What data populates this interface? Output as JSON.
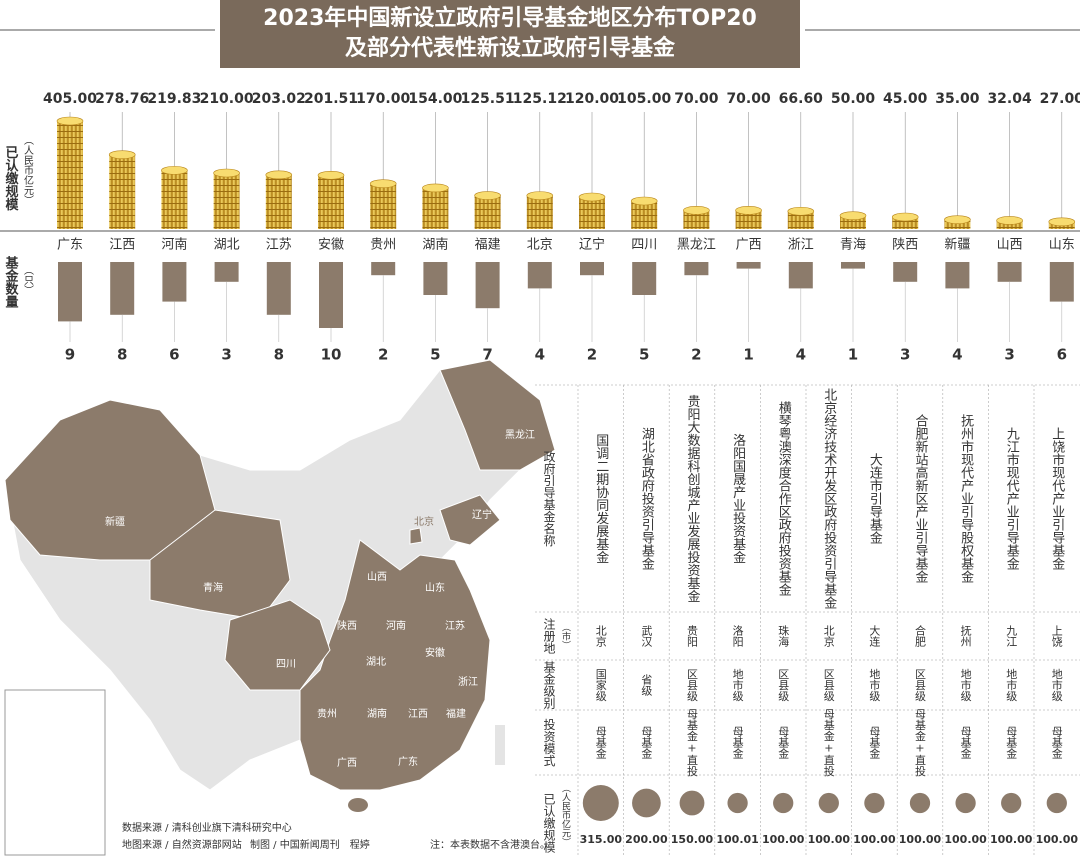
{
  "title_lines": [
    "2023年中国新设立政府引导基金地区分布TOP20",
    "及部分代表性新设立政府引导基金"
  ],
  "chart_data": [
    {
      "type": "bar",
      "categories": [
        "广东",
        "江西",
        "河南",
        "湖北",
        "江苏",
        "安徽",
        "贵州",
        "湖南",
        "福建",
        "北京",
        "辽宁",
        "四川",
        "黑龙江",
        "广西",
        "浙江",
        "青海",
        "陕西",
        "新疆",
        "山西",
        "山东"
      ],
      "series": [
        {
          "name": "已认缴规模",
          "unit": "（人民币亿元）",
          "color": "#e2b53a",
          "values": [
            405,
            278.76,
            219.83,
            210,
            203.02,
            201.51,
            170,
            154,
            125.51,
            125.12,
            120,
            105,
            70,
            70,
            66.6,
            50,
            45,
            35,
            32.04,
            27
          ],
          "value_labels": [
            "405.00",
            "278.76",
            "219.83",
            "210.00",
            "203.02",
            "201.51",
            "170.00",
            "154.00",
            "125.51",
            "125.12",
            "120.00",
            "105.00",
            "70.00",
            "70.00",
            "66.60",
            "50.00",
            "45.00",
            "35.00",
            "32.04",
            "27.00"
          ]
        },
        {
          "name": "基金数量",
          "unit": "（只）",
          "color": "#8c7b6b",
          "values": [
            9,
            8,
            6,
            3,
            8,
            10,
            2,
            5,
            7,
            4,
            2,
            5,
            2,
            1,
            4,
            1,
            3,
            4,
            3,
            6
          ]
        }
      ]
    },
    {
      "type": "bubble",
      "row_labels": [
        {
          "label": "政府引导基金名称"
        },
        {
          "label": "注册地",
          "unit": "（市）"
        },
        {
          "label": "基金级别"
        },
        {
          "label": "投资模式"
        },
        {
          "label": "已认缴规模",
          "unit": "（人民币亿元）"
        }
      ],
      "categories": [
        "国调二期协同发展基金",
        "湖北省政府投资引导基金",
        "贵阳大数据科创城产业发展投资基金",
        "洛阳国晟产业投资基金",
        "横琴粤澳深度合作区政府投资基金",
        "北京经济技术开发区政府投资引导基金",
        "大连市引导基金",
        "合肥新站高新区产业引导基金",
        "抚州市现代产业引导股权基金",
        "九江市现代产业引导基金",
        "上饶市现代产业引导基金"
      ],
      "cities": [
        "北京",
        "武汉",
        "贵阳",
        "洛阳",
        "珠海",
        "北京",
        "大连",
        "合肥",
        "抚州",
        "九江",
        "上饶"
      ],
      "levels": [
        "国家级",
        "省级",
        "区县级",
        "地市级",
        "区县级",
        "区县级",
        "地市级",
        "区县级",
        "地市级",
        "地市级",
        "地市级"
      ],
      "modes": [
        "母基金",
        "母基金",
        "母基金+直投",
        "母基金",
        "母基金",
        "母基金+直投",
        "母基金",
        "母基金+直投",
        "母基金",
        "母基金",
        "母基金"
      ],
      "color": "#8c7b6b",
      "values": [
        315,
        200,
        150,
        100.01,
        100,
        100,
        100,
        100,
        100,
        100,
        100
      ],
      "value_labels": [
        "315.00",
        "200.00",
        "150.00",
        "100.01",
        "100.00",
        "100.00",
        "100.00",
        "100.00",
        "100.00",
        "100.00",
        "100.00"
      ]
    }
  ],
  "map": {
    "labels": [
      "黑龙江",
      "新疆",
      "辽宁",
      "北京",
      "青海",
      "山西",
      "山东",
      "陕西",
      "河南",
      "江苏",
      "四川",
      "湖北",
      "安徽",
      "浙江",
      "贵州",
      "湖南",
      "江西",
      "福建",
      "广西",
      "广东"
    ]
  },
  "sources": [
    "数据来源 / 清科创业旗下清科研究中心",
    "地图来源 / 自然资源部网站",
    "制图 / 中国新闻周刊　程婷",
    "注：本表数据不含港澳台。"
  ]
}
